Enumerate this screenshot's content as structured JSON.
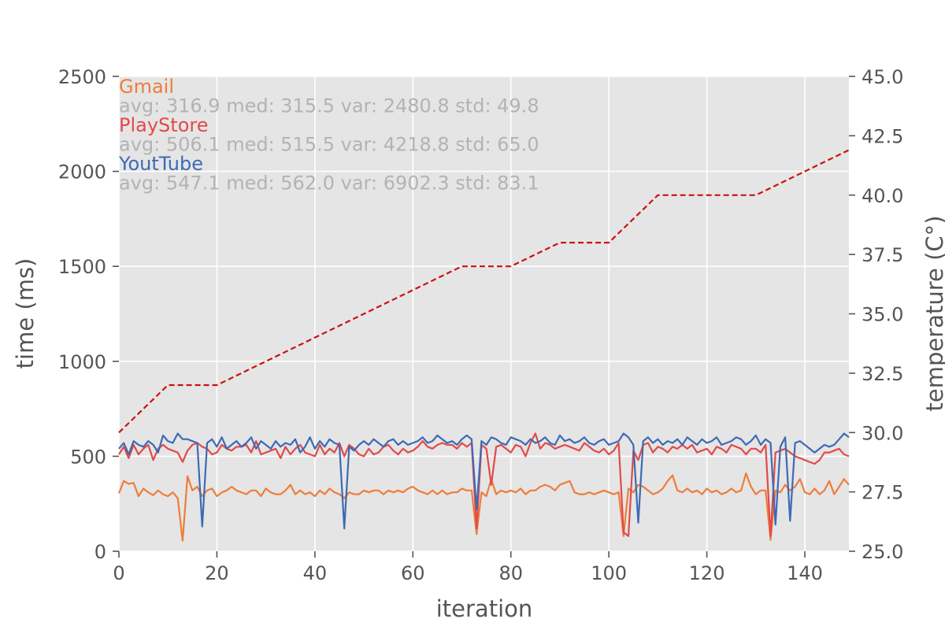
{
  "chart_data": {
    "type": "line",
    "x_axis": {
      "label": "iteration",
      "range": [
        0,
        149
      ],
      "ticks": [
        0,
        20,
        40,
        60,
        80,
        100,
        120,
        140
      ]
    },
    "y_axis_left": {
      "label": "time (ms)",
      "range": [
        0,
        2500
      ],
      "ticks": [
        0,
        500,
        1000,
        1500,
        2000,
        2500
      ]
    },
    "y_axis_right": {
      "label": "temperature (C°)",
      "range": [
        25.0,
        45.0
      ],
      "ticks": [
        "25.0",
        "27.5",
        "30.0",
        "32.5",
        "35.0",
        "37.5",
        "40.0",
        "42.5",
        "45.0"
      ]
    },
    "grid": true,
    "annotations": [
      {
        "name": "Gmail",
        "stats": "avg: 316.9 med: 315.5 var: 2480.8 std: 49.8",
        "color": "#ee7d3a"
      },
      {
        "name": "PlayStore",
        "stats": "avg: 506.1 med: 515.5 var: 4218.8 std: 65.0",
        "color": "#e24a4a"
      },
      {
        "name": "YoutTube",
        "stats": "avg: 547.1 med: 562.0 var: 6902.3 std: 83.1",
        "color": "#3d6ab5"
      }
    ],
    "series": [
      {
        "name": "Gmail",
        "axis": "left",
        "color": "#ee7d3a",
        "values": [
          305,
          370,
          355,
          360,
          290,
          330,
          310,
          295,
          320,
          300,
          290,
          310,
          280,
          55,
          395,
          320,
          340,
          290,
          320,
          330,
          290,
          310,
          320,
          340,
          320,
          310,
          300,
          320,
          320,
          290,
          330,
          310,
          300,
          300,
          320,
          350,
          300,
          320,
          300,
          310,
          290,
          320,
          300,
          330,
          310,
          300,
          280,
          310,
          300,
          300,
          320,
          310,
          320,
          320,
          300,
          320,
          310,
          320,
          310,
          330,
          340,
          320,
          310,
          300,
          320,
          300,
          320,
          300,
          310,
          310,
          330,
          320,
          320,
          90,
          310,
          290,
          380,
          300,
          320,
          310,
          320,
          310,
          330,
          300,
          320,
          320,
          340,
          350,
          340,
          320,
          350,
          360,
          370,
          310,
          300,
          300,
          310,
          300,
          310,
          320,
          310,
          300,
          310,
          80,
          330,
          310,
          350,
          340,
          320,
          300,
          310,
          330,
          370,
          400,
          320,
          310,
          330,
          310,
          320,
          300,
          330,
          310,
          320,
          300,
          310,
          330,
          310,
          320,
          410,
          340,
          300,
          320,
          320,
          60,
          320,
          310,
          350,
          320,
          340,
          380,
          310,
          300,
          330,
          300,
          320,
          370,
          300,
          340,
          380,
          350
        ]
      },
      {
        "name": "PlayStore",
        "axis": "left",
        "color": "#e24a4a",
        "values": [
          510,
          550,
          490,
          560,
          510,
          540,
          560,
          480,
          540,
          560,
          540,
          530,
          520,
          470,
          530,
          560,
          570,
          550,
          540,
          510,
          520,
          560,
          540,
          530,
          550,
          550,
          560,
          520,
          580,
          510,
          520,
          530,
          540,
          490,
          550,
          510,
          540,
          560,
          520,
          510,
          500,
          560,
          510,
          540,
          520,
          570,
          500,
          560,
          540,
          510,
          500,
          540,
          510,
          520,
          550,
          560,
          530,
          510,
          540,
          520,
          530,
          550,
          580,
          550,
          540,
          560,
          570,
          560,
          560,
          540,
          570,
          550,
          570,
          120,
          560,
          540,
          350,
          550,
          560,
          540,
          520,
          560,
          550,
          500,
          570,
          620,
          540,
          570,
          560,
          540,
          550,
          560,
          550,
          540,
          530,
          570,
          550,
          530,
          520,
          540,
          510,
          530,
          570,
          100,
          80,
          530,
          480,
          560,
          570,
          520,
          550,
          540,
          520,
          550,
          540,
          560,
          540,
          560,
          520,
          530,
          540,
          510,
          550,
          540,
          520,
          560,
          550,
          540,
          510,
          540,
          540,
          520,
          560,
          80,
          520,
          530,
          540,
          520,
          500,
          490,
          480,
          470,
          460,
          480,
          520,
          520,
          530,
          540,
          510,
          500
        ]
      },
      {
        "name": "YoutTube",
        "axis": "left",
        "color": "#3d6ab5",
        "values": [
          540,
          570,
          510,
          580,
          560,
          550,
          580,
          560,
          520,
          610,
          580,
          570,
          620,
          590,
          590,
          580,
          570,
          130,
          570,
          590,
          550,
          600,
          540,
          560,
          580,
          550,
          570,
          600,
          540,
          580,
          560,
          540,
          580,
          550,
          570,
          560,
          590,
          520,
          550,
          600,
          540,
          580,
          550,
          590,
          570,
          560,
          120,
          550,
          530,
          560,
          580,
          560,
          590,
          570,
          550,
          580,
          590,
          560,
          580,
          560,
          570,
          580,
          600,
          570,
          580,
          610,
          590,
          570,
          580,
          560,
          590,
          610,
          590,
          220,
          580,
          560,
          600,
          590,
          570,
          560,
          600,
          590,
          580,
          560,
          590,
          570,
          580,
          600,
          570,
          560,
          610,
          580,
          590,
          570,
          580,
          600,
          570,
          560,
          580,
          590,
          560,
          570,
          580,
          620,
          600,
          560,
          150,
          580,
          600,
          570,
          590,
          560,
          580,
          570,
          590,
          560,
          600,
          580,
          560,
          590,
          570,
          580,
          600,
          560,
          570,
          580,
          600,
          590,
          560,
          580,
          610,
          560,
          590,
          570,
          140,
          550,
          600,
          160,
          570,
          580,
          560,
          540,
          520,
          540,
          560,
          550,
          560,
          590,
          620,
          600
        ]
      },
      {
        "name": "temperature",
        "axis": "right",
        "color": "#cc1111",
        "dashed": true,
        "points": [
          [
            0,
            30.0
          ],
          [
            10,
            32.0
          ],
          [
            20,
            32.0
          ],
          [
            70,
            37.0
          ],
          [
            80,
            37.0
          ],
          [
            90,
            38.0
          ],
          [
            100,
            38.0
          ],
          [
            110,
            40.0
          ],
          [
            130,
            40.0
          ],
          [
            149,
            41.9
          ]
        ]
      }
    ]
  }
}
